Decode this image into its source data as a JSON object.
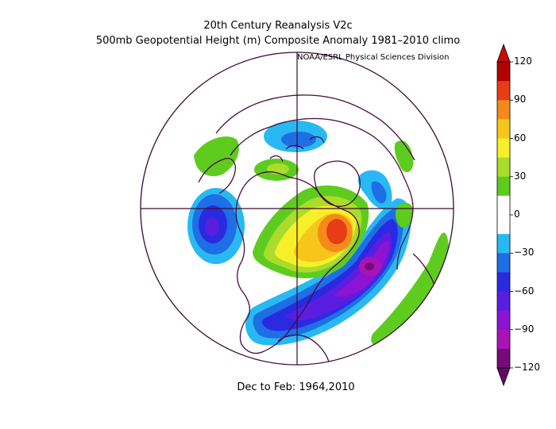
{
  "header": {
    "line1": "20th Century Reanalysis V2c",
    "line2": "500mb Geopotential Height (m) Composite Anomaly 1981–2010 climo",
    "credit": "NOAA/ESRL Physical Sciences Division"
  },
  "footer": {
    "period": "Dec to Feb: 1964,2010"
  },
  "colorbar": {
    "ticks": [
      "120",
      "90",
      "60",
      "30",
      "0",
      "−30",
      "−60",
      "−90",
      "−120"
    ],
    "colors": [
      "#b30000",
      "#e83c14",
      "#f58a1c",
      "#f6c618",
      "#f6f02a",
      "#aadc2c",
      "#5ecc1e",
      "#ffffff",
      "#ffffff",
      "#29b9f2",
      "#1e6ee6",
      "#2a2ae0",
      "#5a1ee0",
      "#8c14d2",
      "#aa14b4",
      "#780a78"
    ]
  }
}
